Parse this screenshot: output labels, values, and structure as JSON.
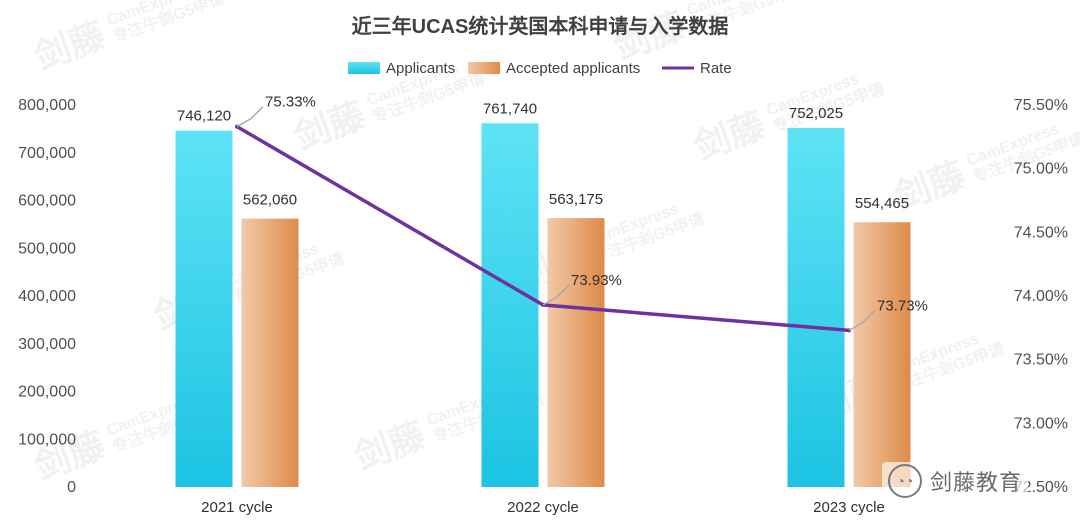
{
  "chart_data": {
    "type": "bar",
    "title": "近三年UCAS统计英国本科申请与入学数据",
    "categories": [
      "2021 cycle",
      "2022 cycle",
      "2023 cycle"
    ],
    "series": [
      {
        "name": "Applicants",
        "kind": "bar",
        "values": [
          746120,
          761740,
          752025
        ],
        "labels": [
          "746,120",
          "761,740",
          "752,025"
        ],
        "color_top": "#5ee3f5",
        "color_bottom": "#1cc3e3"
      },
      {
        "name": "Accepted applicants",
        "kind": "bar",
        "values": [
          562060,
          563175,
          554465
        ],
        "labels": [
          "562,060",
          "563,175",
          "554,465"
        ],
        "color_left": "#f1c9a8",
        "color_right": "#df8a48"
      },
      {
        "name": "Rate",
        "kind": "line",
        "axis": "right",
        "values": [
          75.33,
          73.93,
          73.73
        ],
        "labels": [
          "75.33%",
          "73.93%",
          "73.73%"
        ],
        "color": "#7030a0"
      }
    ],
    "left_axis": {
      "ylim": [
        0,
        800000
      ],
      "ticks": [
        "0",
        "100,000",
        "200,000",
        "300,000",
        "400,000",
        "500,000",
        "600,000",
        "700,000",
        "800,000"
      ]
    },
    "right_axis": {
      "ylim": [
        72.5,
        75.5
      ],
      "ticks": [
        "72.50%",
        "73.00%",
        "73.50%",
        "74.00%",
        "74.50%",
        "75.00%",
        "75.50%"
      ]
    },
    "legend_position": "top",
    "grid": false
  },
  "watermark": {
    "brand_cn": "剑藤",
    "brand_en": "CamExpress",
    "slogan": "专注牛剑G5申请"
  },
  "brand": {
    "name": "剑藤教育",
    "icon": "wechat-icon"
  }
}
